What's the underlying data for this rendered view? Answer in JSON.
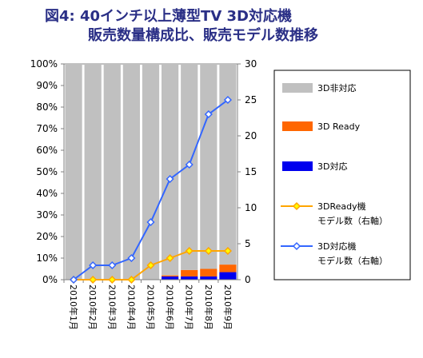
{
  "chart_data": {
    "type": "bar",
    "title_line1": "図4: 40インチ以上薄型TV 3D対応機",
    "title_line2": "販売数量構成比、販売モデル数推移",
    "categories": [
      "2010年1月",
      "2010年2月",
      "2010年3月",
      "2010年4月",
      "2010年5月",
      "2010年6月",
      "2010年7月",
      "2010年8月",
      "2010年9月"
    ],
    "left_axis": {
      "min": 0,
      "max": 100,
      "step": 10,
      "tick_labels": [
        "0%",
        "10%",
        "20%",
        "30%",
        "40%",
        "50%",
        "60%",
        "70%",
        "80%",
        "90%",
        "100%"
      ]
    },
    "right_axis": {
      "min": 0,
      "max": 30,
      "step": 5,
      "tick_labels": [
        "0",
        "5",
        "10",
        "15",
        "20",
        "25",
        "30"
      ]
    },
    "stacked_series": [
      {
        "name": "3D対応",
        "values": [
          0,
          0,
          0,
          0,
          0,
          1.5,
          1.5,
          1.5,
          3.5
        ],
        "color": "#0000ee"
      },
      {
        "name": "3D Ready",
        "values": [
          0,
          0,
          0,
          0,
          0,
          0.5,
          3.0,
          3.5,
          3.5
        ],
        "color": "#ff6600"
      },
      {
        "name": "3D非対応",
        "values": [
          100,
          100,
          100,
          100,
          100,
          98.0,
          95.5,
          95.0,
          93.0
        ],
        "color": "#c0c0c0"
      }
    ],
    "line_series": [
      {
        "name": "3DReady機 モデル数（右軸）",
        "legend_line1": "3DReady機",
        "legend_line2": "モデル数（右軸）",
        "values": [
          0,
          0,
          0,
          0,
          2,
          3,
          4,
          4,
          4
        ],
        "color": "#ffa500",
        "marker_fill": "#ffff00"
      },
      {
        "name": "3D対応機 モデル数（右軸）",
        "legend_line1": "3D対応機",
        "legend_line2": "モデル数（右軸）",
        "values": [
          0,
          2,
          2,
          3,
          8,
          14,
          16,
          23,
          25
        ],
        "color": "#3366ff",
        "marker_fill": "#ffffff"
      }
    ],
    "legend_position": "right"
  }
}
